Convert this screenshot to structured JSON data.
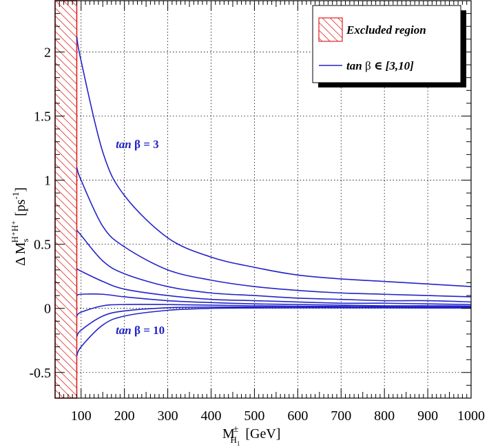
{
  "chart_data": {
    "type": "line",
    "xlabel": "M",
    "xlabel_super": "±",
    "xlabel_sub": "H",
    "xlabel_subsub": "1",
    "xlabel_unit": "[GeV]",
    "ylabel": "Δ M",
    "ylabel_super": "H⁺H⁺",
    "ylabel_sub": "s",
    "ylabel_unit": "[ps",
    "ylabel_unit_super": "-1",
    "ylabel_unit_close": "]",
    "xlim": [
      40,
      1000
    ],
    "ylim": [
      -0.7,
      2.4
    ],
    "xticks": [
      100,
      200,
      300,
      400,
      500,
      600,
      700,
      800,
      900,
      1000
    ],
    "yticks": [
      -0.5,
      0,
      0.5,
      1,
      1.5,
      2
    ],
    "ytick_labels": [
      "-0.5",
      "0",
      "0.5",
      "1",
      "1.5",
      "2"
    ],
    "grid": true,
    "excluded_region": {
      "x": [
        40,
        90
      ],
      "color": "#e02020"
    },
    "line_color": "#2323c8",
    "x": [
      90,
      100,
      150,
      200,
      300,
      400,
      500,
      600,
      700,
      800,
      900,
      1000
    ],
    "series": [
      {
        "values": [
          2.12,
          1.93,
          1.22,
          0.88,
          0.55,
          0.4,
          0.32,
          0.26,
          0.23,
          0.21,
          0.19,
          0.17
        ]
      },
      {
        "values": [
          1.1,
          1.0,
          0.64,
          0.48,
          0.3,
          0.22,
          0.17,
          0.14,
          0.12,
          0.11,
          0.1,
          0.09
        ]
      },
      {
        "values": [
          0.61,
          0.57,
          0.37,
          0.27,
          0.17,
          0.12,
          0.1,
          0.08,
          0.07,
          0.06,
          0.06,
          0.05
        ]
      },
      {
        "values": [
          0.31,
          0.29,
          0.21,
          0.15,
          0.1,
          0.07,
          0.06,
          0.05,
          0.04,
          0.04,
          0.035,
          0.03
        ]
      },
      {
        "values": [
          0.1,
          0.11,
          0.11,
          0.09,
          0.06,
          0.045,
          0.035,
          0.03,
          0.025,
          0.02,
          0.02,
          0.018
        ]
      },
      {
        "values": [
          -0.06,
          -0.03,
          0.02,
          0.03,
          0.03,
          0.025,
          0.02,
          0.017,
          0.015,
          0.013,
          0.012,
          0.01
        ]
      },
      {
        "values": [
          -0.22,
          -0.17,
          -0.06,
          -0.02,
          0.005,
          0.01,
          0.01,
          0.009,
          0.008,
          0.007,
          0.006,
          0.005
        ]
      },
      {
        "values": [
          -0.37,
          -0.3,
          -0.13,
          -0.06,
          -0.015,
          0.0,
          0.003,
          0.004,
          0.004,
          0.004,
          0.003,
          0.003
        ]
      }
    ],
    "annotations": [
      {
        "text_bold": "tan ",
        "text_greek": "β = 3",
        "x": 180,
        "y": 1.25
      },
      {
        "text_bold": "tan ",
        "text_greek": "β = 10",
        "x": 180,
        "y": -0.2
      }
    ],
    "legend": {
      "position": "top-right",
      "entries": [
        {
          "kind": "hatch",
          "label": "Excluded region"
        },
        {
          "kind": "line",
          "label_pre": "tan ",
          "label_greek": "β",
          "label_post": " ∈ [3,10]"
        }
      ]
    }
  }
}
